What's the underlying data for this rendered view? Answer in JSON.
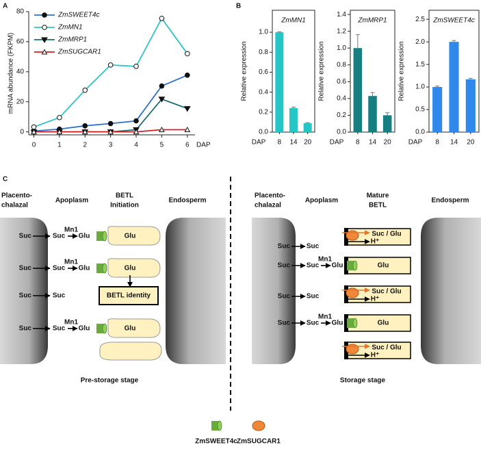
{
  "chart_data": [
    {
      "type": "line",
      "panel_label": "A",
      "xlabel": "DAP",
      "ylabel": "mRNA abundance (FKPM)",
      "x": [
        0,
        1,
        2,
        3,
        4,
        5,
        6
      ],
      "xlim": [
        -0.2,
        6.3
      ],
      "xticks": [
        0,
        1,
        2,
        3,
        4,
        5,
        6
      ],
      "ylim": [
        -2,
        80
      ],
      "yticks": [
        0,
        20,
        40,
        60,
        80
      ],
      "series": [
        {
          "name": "ZmSWEET4c",
          "color": "#2e6fd0",
          "marker": "circle",
          "values": [
            0.5,
            1.8,
            4,
            5.5,
            7.3,
            30.5,
            37.7
          ]
        },
        {
          "name": "ZmMN1",
          "color": "#2ec4c4",
          "marker": "circle-open",
          "values": [
            3.2,
            9.5,
            27.7,
            44.5,
            43.6,
            75.5,
            52
          ]
        },
        {
          "name": "ZmMRP1",
          "color": "#1a6e6e",
          "marker": "triangle-down",
          "values": [
            0,
            0,
            0,
            0,
            1.4,
            21.8,
            15.5
          ]
        },
        {
          "name": "ZmSUGCAR1",
          "color": "#d02020",
          "marker": "triangle-open",
          "values": [
            0,
            0,
            0,
            0,
            0,
            1.4,
            1.4
          ]
        }
      ]
    },
    {
      "type": "bar",
      "panel_label": "B",
      "title": "ZmMN1",
      "xlabel": "DAP",
      "ylabel": "Relative expression",
      "color": "#27c6c6",
      "categories": [
        "8",
        "14",
        "20"
      ],
      "values": [
        1.0,
        0.24,
        0.09
      ],
      "errors": [
        0.005,
        0.01,
        0.005
      ],
      "ylim": [
        0,
        1.22
      ],
      "yticks": [
        {
          "value": 0,
          "label": "0.0"
        },
        0.2,
        0.4,
        0.6,
        0.8,
        {
          "value": 1,
          "label": "1.0"
        }
      ]
    },
    {
      "type": "bar",
      "title": "ZmMRP1",
      "xlabel": "DAP",
      "ylabel": "Relative expression",
      "color": "#177f7f",
      "categories": [
        "8",
        "14",
        "20"
      ],
      "values": [
        1.0,
        0.43,
        0.2
      ],
      "errors": [
        0.16,
        0.04,
        0.03
      ],
      "ylim": [
        0,
        1.45
      ],
      "yticks": [
        {
          "value": 0,
          "label": "0.0"
        },
        0.2,
        0.4,
        0.6,
        0.8,
        {
          "value": 1,
          "label": "1.0"
        },
        1.2,
        1.4
      ]
    },
    {
      "type": "bar",
      "title": "ZmSWEET4c",
      "xlabel": "DAP",
      "ylabel": "Relative expression",
      "color": "#2f88ea",
      "categories": [
        "8",
        "14",
        "20"
      ],
      "values": [
        1.0,
        2.0,
        1.17
      ],
      "errors": [
        0.02,
        0.03,
        0.02
      ],
      "ylim": [
        0,
        2.7
      ],
      "yticks": [
        {
          "value": 0,
          "label": "0.0"
        },
        0.5,
        {
          "value": 1,
          "label": "1.0"
        },
        1.5,
        {
          "value": 2,
          "label": "2.0"
        },
        2.5
      ]
    }
  ],
  "diagram": {
    "panel_label": "C",
    "left": {
      "headers": [
        [
          "Placento-",
          "chalazal"
        ],
        [
          "Apoplasm"
        ],
        [
          "BETL",
          "Initiation"
        ],
        [
          "Endosperm"
        ]
      ],
      "rows": [
        {
          "source": "Suc",
          "apoplast": "Suc",
          "enzyme": "Mn1",
          "product": "Glu",
          "cell": "Glu"
        },
        {
          "source": "Suc",
          "apoplast": "Suc",
          "enzyme": "Mn1",
          "product": "Glu",
          "cell": "Glu"
        },
        {
          "source": "Suc",
          "apoplast": "Suc"
        },
        {
          "source": "Suc",
          "apoplast": "Suc",
          "enzyme": "Mn1",
          "product": "Glu",
          "cell": "Glu"
        }
      ],
      "identity": "BETL identity",
      "stage": "Pre-storage stage"
    },
    "right": {
      "headers": [
        [
          "Placento-",
          "chalazal"
        ],
        [
          "Apoplasm"
        ],
        [
          "Mature",
          "BETL"
        ],
        [
          "Endosperm"
        ]
      ],
      "rows": [
        {
          "source": "Suc",
          "apoplast": "Suc"
        },
        {
          "source": "Suc",
          "apoplast": "Suc",
          "enzyme": "Mn1",
          "product": "Glu"
        },
        {
          "source": "Suc",
          "apoplast": "Suc"
        },
        {
          "source": "Suc",
          "apoplast": "Suc",
          "enzyme": "Mn1",
          "product": "Glu"
        }
      ],
      "cells": [
        {
          "text": "Suc / Glu",
          "ion": "H⁺"
        },
        {
          "text": "Glu"
        },
        {
          "text": "Suc / Glu",
          "ion": "H⁺"
        },
        {
          "text": "Glu"
        },
        {
          "text": "Suc / Glu",
          "ion": "H⁺"
        }
      ],
      "stage": "Storage stage"
    },
    "legend": [
      "ZmSWEET4c",
      "ZmSUGCAR1"
    ]
  }
}
